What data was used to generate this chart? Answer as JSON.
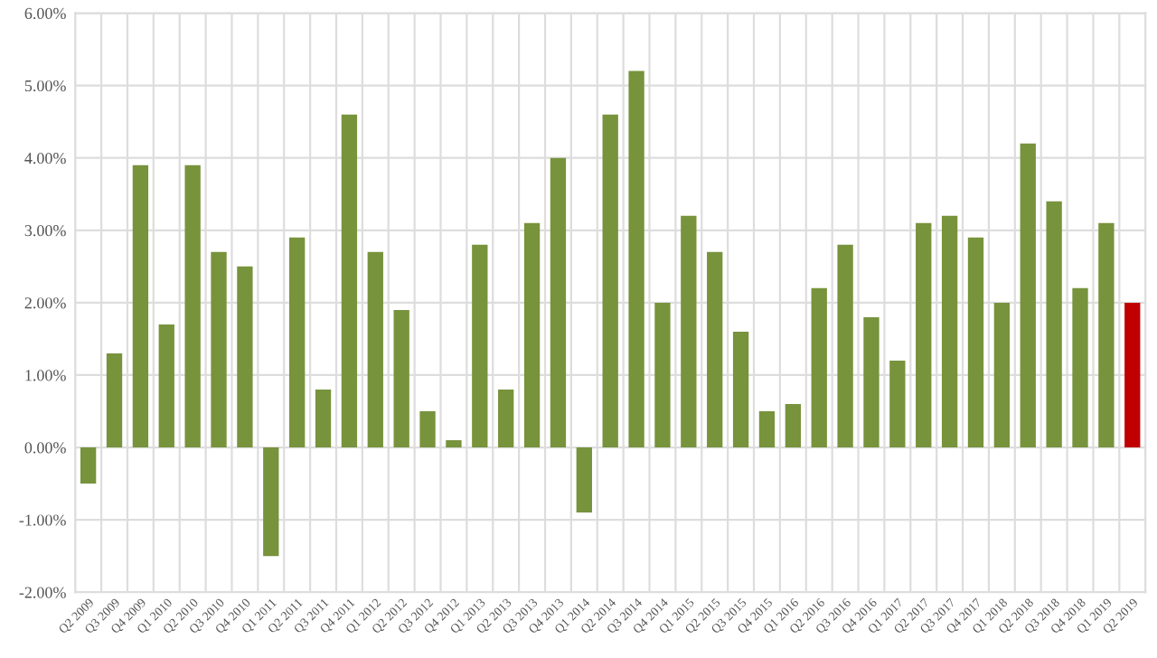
{
  "chart_data": {
    "type": "bar",
    "categories": [
      "Q2 2009",
      "Q3 2009",
      "Q4 2009",
      "Q1 2010",
      "Q2 2010",
      "Q3 2010",
      "Q4 2010",
      "Q1 2011",
      "Q2 2011",
      "Q3 2011",
      "Q4 2011",
      "Q1 2012",
      "Q2 2012",
      "Q3 2012",
      "Q4 2012",
      "Q1 2013",
      "Q2 2013",
      "Q3 2013",
      "Q4 2013",
      "Q1 2014",
      "Q2 2014",
      "Q3 2014",
      "Q4 2014",
      "Q1 2015",
      "Q2 2015",
      "Q3 2015",
      "Q4 2015",
      "Q1 2016",
      "Q2 2016",
      "Q3 2016",
      "Q4 2016",
      "Q1 2017",
      "Q2 2017",
      "Q3 2017",
      "Q4 2017",
      "Q1 2018",
      "Q2 2018",
      "Q3 2018",
      "Q4 2018",
      "Q1 2019",
      "Q2 2019"
    ],
    "values": [
      -0.5,
      1.3,
      3.9,
      1.7,
      3.9,
      2.7,
      2.5,
      -1.5,
      2.9,
      0.8,
      4.6,
      2.7,
      1.9,
      0.5,
      0.1,
      2.8,
      0.8,
      3.1,
      4.0,
      -0.9,
      4.6,
      5.2,
      2.0,
      3.2,
      2.7,
      1.6,
      0.5,
      0.6,
      2.2,
      2.8,
      1.8,
      1.2,
      3.1,
      3.2,
      2.9,
      2.0,
      4.2,
      3.4,
      2.2,
      3.1,
      2.0
    ],
    "colors": [
      "#77933c",
      "#77933c",
      "#77933c",
      "#77933c",
      "#77933c",
      "#77933c",
      "#77933c",
      "#77933c",
      "#77933c",
      "#77933c",
      "#77933c",
      "#77933c",
      "#77933c",
      "#77933c",
      "#77933c",
      "#77933c",
      "#77933c",
      "#77933c",
      "#77933c",
      "#77933c",
      "#77933c",
      "#77933c",
      "#77933c",
      "#77933c",
      "#77933c",
      "#77933c",
      "#77933c",
      "#77933c",
      "#77933c",
      "#77933c",
      "#77933c",
      "#77933c",
      "#77933c",
      "#77933c",
      "#77933c",
      "#77933c",
      "#77933c",
      "#77933c",
      "#77933c",
      "#77933c",
      "#c00000"
    ],
    "ylim": [
      -2,
      6
    ],
    "yticks": [
      {
        "value": -2,
        "label": "-2.00%"
      },
      {
        "value": -1,
        "label": "-1.00%"
      },
      {
        "value": 0,
        "label": "0.00%"
      },
      {
        "value": 1,
        "label": "1.00%"
      },
      {
        "value": 2,
        "label": "2.00%"
      },
      {
        "value": 3,
        "label": "3.00%"
      },
      {
        "value": 4,
        "label": "4.00%"
      },
      {
        "value": 5,
        "label": "5.00%"
      },
      {
        "value": 6,
        "label": "6.00%"
      }
    ],
    "grid": true
  }
}
